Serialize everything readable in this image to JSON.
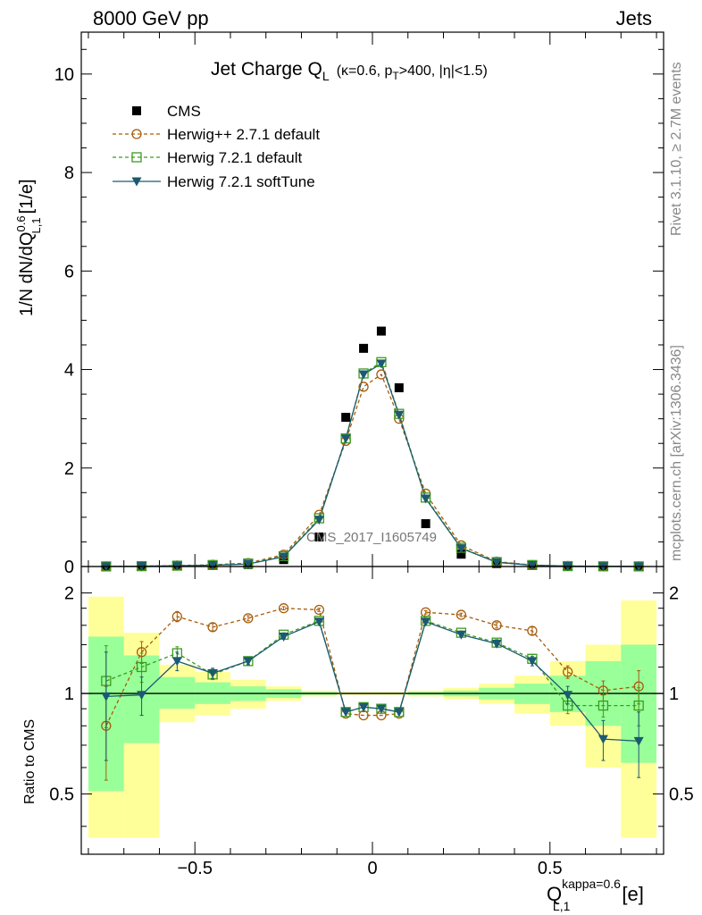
{
  "header": {
    "left": "8000 GeV pp",
    "right": "Jets",
    "side_top": "Rivet 3.1.10, ≥ 2.7M events",
    "side_bottom": "mcplots.cern.ch [arXiv:1306.3436]",
    "watermark": "CMS_2017_I1605749"
  },
  "chart_data": {
    "type": "line",
    "title": "Jet Charge Q",
    "title_sub": "L",
    "title_extra": "(κ=0.6, p",
    "title_extra_sub": "T",
    "title_extra_end": ">400, |η|<1.5)",
    "ylabel": "1/N dN/dQ",
    "ylabel_sup": "0.6",
    "ylabel_sub": "L,1",
    "ylabel_unit": "[1/e]",
    "xlabel": "Q",
    "xlabel_sup": "kappa=0.6",
    "xlabel_sub": "L,1",
    "xlabel_unit": "[e]",
    "ratio_ylabel": "Ratio to CMS",
    "xlim": [
      -0.82,
      0.82
    ],
    "ylim": [
      0,
      10.85
    ],
    "ratio_ylim": [
      0.33,
      2.4
    ],
    "ratio_log": true,
    "x_ticks": [
      "−0.5",
      "0",
      "0.5"
    ],
    "x_tick_values": [
      -0.5,
      0,
      0.5
    ],
    "y_ticks": [
      "0",
      "2",
      "4",
      "6",
      "8",
      "10"
    ],
    "y_tick_values": [
      0,
      2,
      4,
      6,
      8,
      10
    ],
    "ratio_ticks": [
      "0.5",
      "1",
      "2"
    ],
    "ratio_tick_values": [
      0.5,
      1,
      2
    ],
    "legend_position": "top-left",
    "colors": {
      "cms": "#000000",
      "herwigpp": "#a85c0a",
      "h721": "#3d9c1e",
      "soft": "#1b5a70",
      "band_yellow": "#ffff99",
      "band_green": "#99ff99"
    },
    "x": [
      -0.75,
      -0.65,
      -0.55,
      -0.45,
      -0.35,
      -0.25,
      -0.15,
      -0.075,
      -0.025,
      0.025,
      0.075,
      0.15,
      0.25,
      0.35,
      0.45,
      0.55,
      0.65,
      0.75
    ],
    "bin_edges": [
      -0.8,
      -0.7,
      -0.6,
      -0.5,
      -0.4,
      -0.3,
      -0.2,
      -0.1,
      -0.05,
      0,
      0.05,
      0.1,
      0.2,
      0.3,
      0.4,
      0.5,
      0.6,
      0.7,
      0.8
    ],
    "series": [
      {
        "name": "CMS",
        "key": "cms",
        "values": [
          0.002,
          0.006,
          0.012,
          0.02,
          0.04,
          0.14,
          0.6,
          3.03,
          4.43,
          4.78,
          3.63,
          0.87,
          0.25,
          0.06,
          0.02,
          0.008,
          0.004,
          0.002
        ]
      },
      {
        "name": "Herwig++ 2.7.1 default",
        "key": "herwigpp",
        "values": [
          0.002,
          0.008,
          0.02,
          0.035,
          0.07,
          0.24,
          1.05,
          2.55,
          3.65,
          3.9,
          3.0,
          1.48,
          0.43,
          0.1,
          0.03,
          0.01,
          0.004,
          0.002
        ],
        "ratio": [
          0.8,
          1.33,
          1.7,
          1.58,
          1.68,
          1.8,
          1.78,
          0.87,
          0.86,
          0.86,
          0.87,
          1.75,
          1.72,
          1.6,
          1.54,
          1.16,
          1.02,
          1.05
        ]
      },
      {
        "name": "Herwig 7.2.1 default",
        "key": "h721",
        "values": [
          0.002,
          0.007,
          0.017,
          0.03,
          0.06,
          0.21,
          0.98,
          2.6,
          3.92,
          4.15,
          3.1,
          1.4,
          0.38,
          0.09,
          0.03,
          0.008,
          0.004,
          0.002
        ],
        "ratio": [
          1.09,
          1.2,
          1.32,
          1.14,
          1.25,
          1.5,
          1.65,
          0.88,
          0.91,
          0.9,
          0.88,
          1.65,
          1.52,
          1.42,
          1.27,
          0.92,
          0.92,
          0.92
        ]
      },
      {
        "name": "Herwig 7.2.1 softTune",
        "key": "soft",
        "values": [
          0.002,
          0.006,
          0.016,
          0.026,
          0.05,
          0.2,
          0.95,
          2.6,
          3.9,
          4.12,
          3.08,
          1.38,
          0.37,
          0.085,
          0.025,
          0.008,
          0.003,
          0.0015
        ],
        "ratio": [
          0.98,
          0.99,
          1.25,
          1.15,
          1.25,
          1.48,
          1.64,
          0.88,
          0.91,
          0.9,
          0.88,
          1.64,
          1.5,
          1.41,
          1.25,
          0.99,
          0.73,
          0.72
        ]
      }
    ],
    "ratio_errors": {
      "herwigpp": [
        0.25,
        0.1,
        0.06,
        0.04,
        0.03,
        0.02,
        0.02,
        0.01,
        0.01,
        0.01,
        0.01,
        0.02,
        0.02,
        0.03,
        0.04,
        0.05,
        0.07,
        0.12
      ],
      "h721": [
        0.3,
        0.12,
        0.06,
        0.04,
        0.03,
        0.02,
        0.02,
        0.01,
        0.01,
        0.01,
        0.01,
        0.02,
        0.02,
        0.03,
        0.04,
        0.05,
        0.07,
        0.12
      ],
      "soft": [
        0.35,
        0.13,
        0.08,
        0.04,
        0.03,
        0.02,
        0.02,
        0.01,
        0.01,
        0.01,
        0.01,
        0.02,
        0.02,
        0.03,
        0.04,
        0.06,
        0.1,
        0.16
      ]
    },
    "bands": {
      "yellow": [
        [
          0.37,
          1.95
        ],
        [
          0.37,
          1.52
        ],
        [
          0.82,
          1.22
        ],
        [
          0.86,
          1.16
        ],
        [
          0.9,
          1.1
        ],
        [
          0.95,
          1.05
        ],
        [
          0.98,
          1.02
        ],
        [
          0.99,
          1.01
        ],
        [
          0.99,
          1.01
        ],
        [
          0.99,
          1.01
        ],
        [
          0.99,
          1.01
        ],
        [
          0.98,
          1.02
        ],
        [
          0.96,
          1.04
        ],
        [
          0.93,
          1.07
        ],
        [
          0.87,
          1.13
        ],
        [
          0.8,
          1.25
        ],
        [
          0.6,
          1.4
        ],
        [
          0.37,
          1.9
        ]
      ],
      "green": [
        [
          0.51,
          1.48
        ],
        [
          0.71,
          1.3
        ],
        [
          0.9,
          1.12
        ],
        [
          0.93,
          1.08
        ],
        [
          0.95,
          1.05
        ],
        [
          0.97,
          1.03
        ],
        [
          0.99,
          1.01
        ],
        [
          0.995,
          1.005
        ],
        [
          0.995,
          1.005
        ],
        [
          0.995,
          1.005
        ],
        [
          0.995,
          1.005
        ],
        [
          0.99,
          1.01
        ],
        [
          0.98,
          1.02
        ],
        [
          0.96,
          1.04
        ],
        [
          0.93,
          1.07
        ],
        [
          0.88,
          1.13
        ],
        [
          0.8,
          1.25
        ],
        [
          0.62,
          1.4
        ]
      ]
    }
  }
}
